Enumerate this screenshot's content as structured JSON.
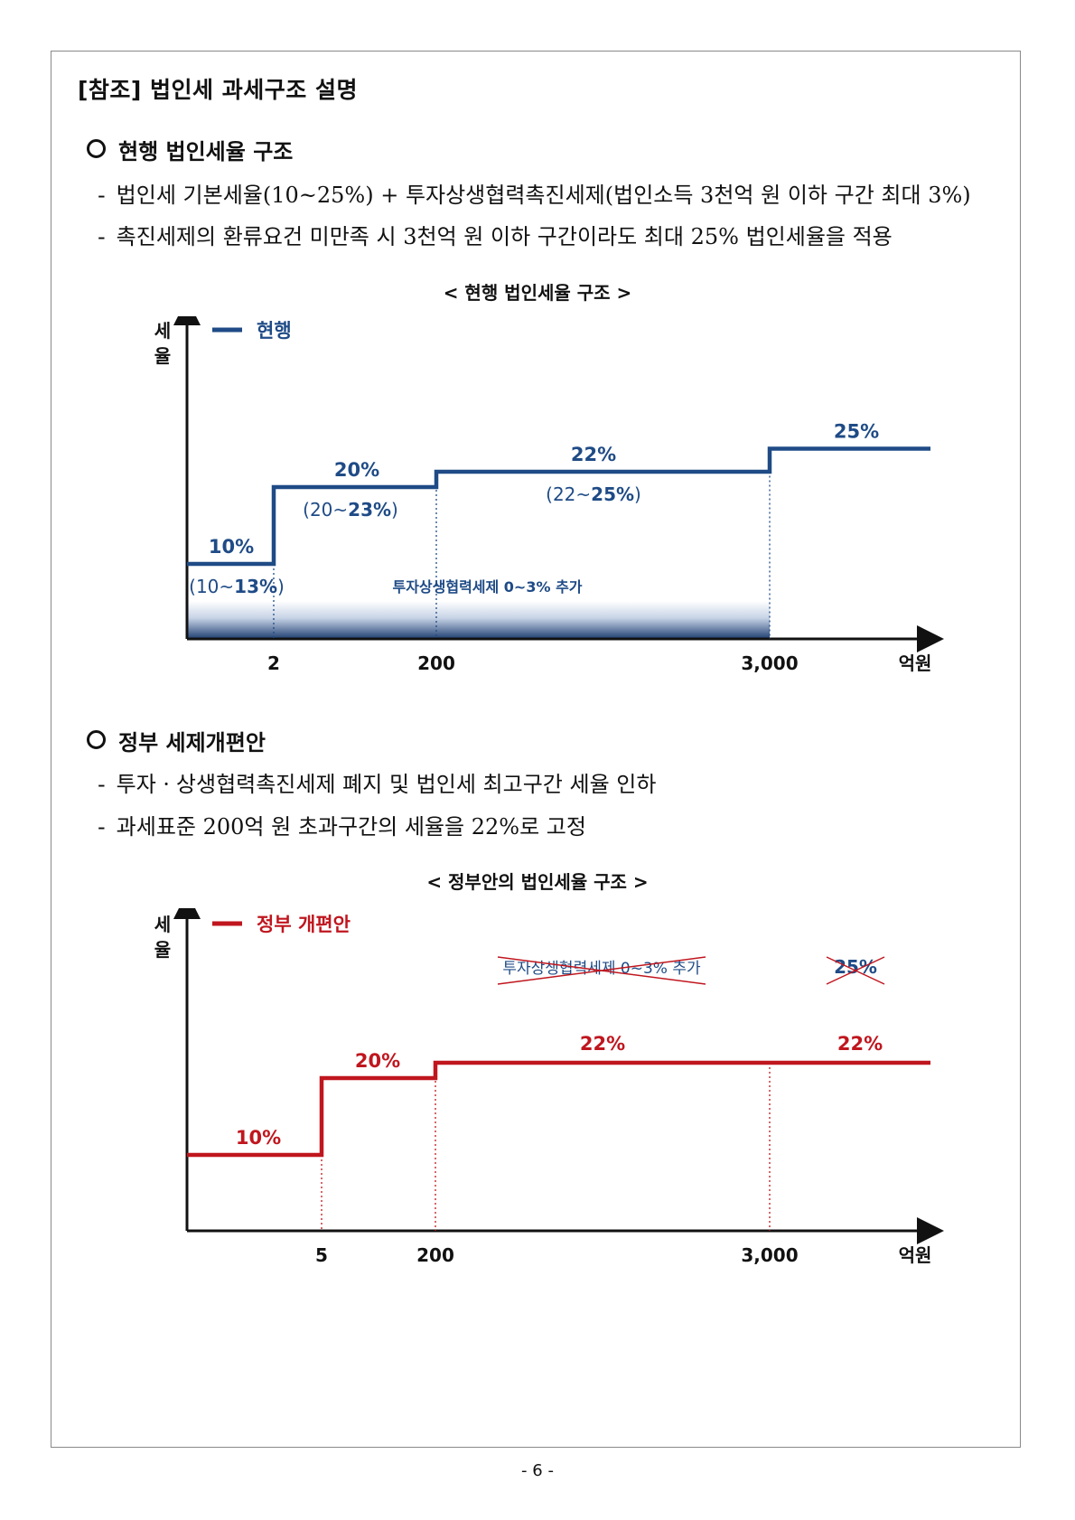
{
  "doc": {
    "title": "[참조] 법인세 과세구조 설명",
    "page_number": "- 6 -"
  },
  "section1": {
    "heading": "현행 법인세율 구조",
    "items": [
      "법인세 기본세율(10~25%) + 투자상생협력촉진세제(법인소득 3천억 원 이하 구간 최대 3%)",
      "촉진세제의 환류요건 미만족 시 3천억 원 이하 구간이라도 최대 25% 법인세율을 적용"
    ],
    "chart_caption": "< 현행 법인세율 구조 >"
  },
  "section2": {
    "heading": "정부 세제개편안",
    "items": [
      "투자ㆍ상생협력촉진세제 폐지 및 법인세 최고구간 세율 인하",
      "과세표준 200억 원 초과구간의 세율을 22%로 고정"
    ],
    "chart_caption": "< 정부안의 법인세율 구조 >"
  },
  "chart_data": [
    {
      "type": "line",
      "step": true,
      "color": "#1f4b86",
      "ylabel": "세율",
      "xunit": "억원",
      "legend": "현행",
      "x_ticks": [
        "2",
        "200",
        "3,000"
      ],
      "series": [
        {
          "name": "현행",
          "values": [
            10,
            20,
            22,
            25
          ]
        }
      ],
      "brackets": [
        "~2",
        "2~200",
        "200~3,000",
        "3,000~"
      ],
      "rate_labels": [
        "10%",
        "20%",
        "22%",
        "25%"
      ],
      "range_labels": [
        {
          "pre": "(10~",
          "bold": "13%",
          "post": ")"
        },
        {
          "pre": "(20~",
          "bold": "23%",
          "post": ")"
        },
        {
          "pre": "(22~",
          "bold": "25%",
          "post": ")"
        }
      ],
      "band_label": "투자상생협력세제 0~3% 추가"
    },
    {
      "type": "line",
      "step": true,
      "color": "#c0161e",
      "ylabel": "세율",
      "xunit": "억원",
      "legend": "정부 개편안",
      "x_ticks": [
        "5",
        "200",
        "3,000"
      ],
      "series": [
        {
          "name": "정부 개편안",
          "values": [
            10,
            20,
            22,
            22
          ]
        }
      ],
      "brackets": [
        "~5",
        "5~200",
        "200~3,000",
        "3,000~"
      ],
      "rate_labels": [
        "10%",
        "20%",
        "22%",
        "22%"
      ],
      "struck_labels": [
        "투자상생협력세제 0~3% 추가",
        "25%"
      ]
    }
  ]
}
